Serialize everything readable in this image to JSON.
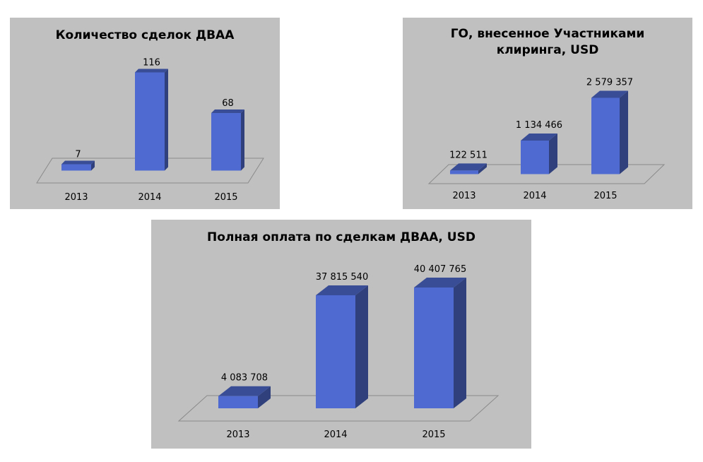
{
  "chart_data": [
    {
      "type": "bar",
      "title": "Количество сделок ДВАА",
      "categories": [
        "2013",
        "2014",
        "2015"
      ],
      "values": [
        7,
        116,
        68
      ],
      "value_labels": [
        "7",
        "116",
        "68"
      ],
      "xlabel": "",
      "ylabel": "",
      "ylim": [
        0,
        116
      ],
      "grid": false,
      "legend": "none",
      "color": "#4f6bd1"
    },
    {
      "type": "bar",
      "title": "ГО, внесенное Участниками клиринга, USD",
      "title_lines": [
        "ГО, внесенное Участниками",
        "клиринга, USD"
      ],
      "categories": [
        "2013",
        "2014",
        "2015"
      ],
      "values": [
        122511,
        1134466,
        2579357
      ],
      "value_labels": [
        "122 511",
        "1 134 466",
        "2 579 357"
      ],
      "xlabel": "",
      "ylabel": "",
      "ylim": [
        0,
        2579357
      ],
      "grid": false,
      "legend": "none",
      "color": "#4f6bd1"
    },
    {
      "type": "bar",
      "title": "Полная оплата по сделкам ДВАА, USD",
      "categories": [
        "2013",
        "2014",
        "2015"
      ],
      "values": [
        4083708,
        37815540,
        40407765
      ],
      "value_labels": [
        "4 083 708",
        "37 815 540",
        "40 407 765"
      ],
      "xlabel": "",
      "ylabel": "",
      "ylim": [
        0,
        40407765
      ],
      "grid": false,
      "legend": "none",
      "color": "#4f6bd1"
    }
  ]
}
